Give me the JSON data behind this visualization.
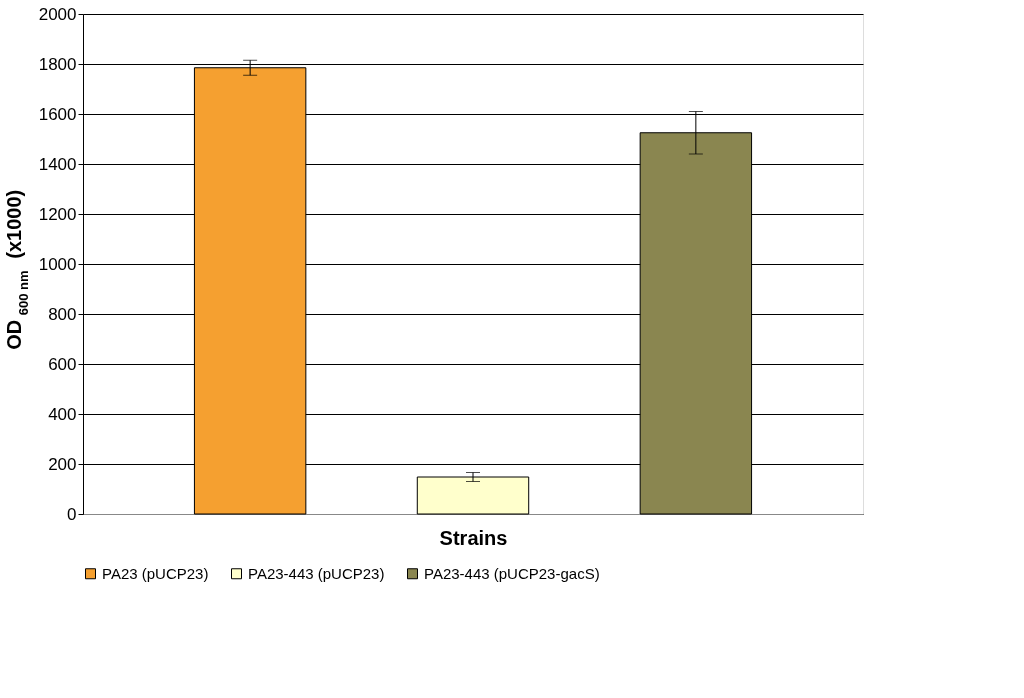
{
  "chart_data": {
    "type": "bar",
    "xlabel": "Strains",
    "ylabel": "OD $_{600 nm}$ (x1000)",
    "categories": [
      null,
      null,
      null
    ],
    "series": [
      {
        "name": "PA23 (pUCP23)",
        "color": "#f5a030",
        "values": [
          1785,
          null,
          null
        ],
        "errors": [
          30,
          null,
          null
        ]
      },
      {
        "name": "PA23-443 (pUCP23)",
        "color": "#ffffcc",
        "values": [
          null,
          148,
          null
        ],
        "errors": [
          null,
          18,
          null
        ]
      },
      {
        "name": "PA23-443 (pUCP23-gacS)",
        "color": "#8a8650",
        "values": [
          null,
          null,
          1525
        ],
        "errors": [
          null,
          null,
          85
        ]
      }
    ],
    "ylim": [
      0,
      2000
    ],
    "yticks": [
      0,
      200,
      400,
      600,
      800,
      1000,
      1200,
      1400,
      1600,
      1800,
      2000
    ],
    "grid": "y",
    "legend": "bottom",
    "tick_labels": "y"
  }
}
